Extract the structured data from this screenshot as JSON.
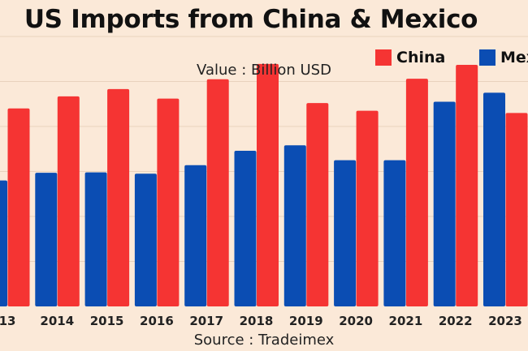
{
  "title": "US Imports from China & Mexico",
  "subtitle": "Value : Billion USD",
  "source": "Source : Tradeimex",
  "legend": [
    {
      "name": "China",
      "label": "China",
      "color": "#f53433"
    },
    {
      "name": "Mexico",
      "label": "Mex",
      "color": "#0b4db3"
    }
  ],
  "chart_data": {
    "type": "bar",
    "title": "US Imports from China & Mexico",
    "subtitle": "Value : Billion USD",
    "categories": [
      "13",
      "2014",
      "2015",
      "2016",
      "2017",
      "2018",
      "2019",
      "2020",
      "2021",
      "2022",
      "2023"
    ],
    "series": [
      {
        "name": "Mexico",
        "color": "#0b4db3",
        "values": [
          280,
          297,
          298,
          295,
          314,
          346,
          358,
          325,
          325,
          455,
          475
        ]
      },
      {
        "name": "China",
        "color": "#f53433",
        "values": [
          440,
          467,
          483,
          462,
          505,
          539,
          452,
          435,
          506,
          537,
          430
        ]
      }
    ],
    "trailing_partial": {
      "series": "Mexico",
      "value": 120
    },
    "ylim": [
      0,
      600
    ],
    "grid": true,
    "legend_position": "top-right"
  }
}
